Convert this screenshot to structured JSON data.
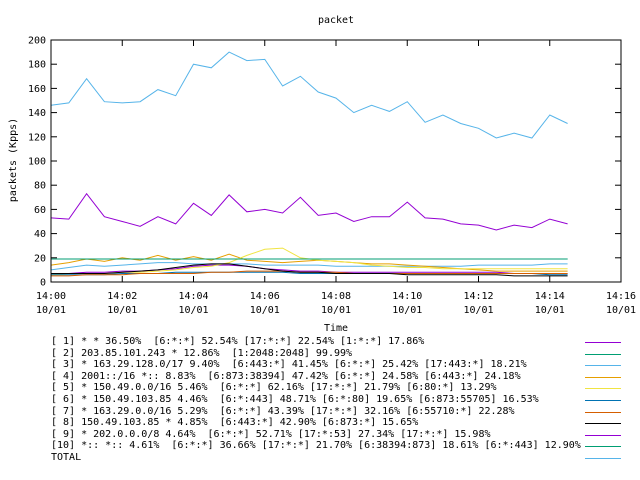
{
  "chart_data": {
    "type": "line",
    "title": "packet",
    "xlabel": "Time",
    "ylabel": "packets (Kpps)",
    "ylim": [
      0,
      200
    ],
    "y_ticks": [
      "0",
      "20",
      "40",
      "60",
      "80",
      "100",
      "120",
      "140",
      "160",
      "180",
      "200"
    ],
    "xlim": [
      "14:00",
      "14:16"
    ],
    "x_ticks": [
      {
        "time": "14:00",
        "date": "10/01"
      },
      {
        "time": "14:02",
        "date": "10/01"
      },
      {
        "time": "14:04",
        "date": "10/01"
      },
      {
        "time": "14:06",
        "date": "10/01"
      },
      {
        "time": "14:08",
        "date": "10/01"
      },
      {
        "time": "14:10",
        "date": "10/01"
      },
      {
        "time": "14:12",
        "date": "10/01"
      },
      {
        "time": "14:14",
        "date": "10/01"
      },
      {
        "time": "14:16",
        "date": "10/01"
      }
    ],
    "grid": false,
    "legend_position": "bottom",
    "x": [
      "14:00:00",
      "14:00:30",
      "14:01:00",
      "14:01:30",
      "14:02:00",
      "14:02:30",
      "14:03:00",
      "14:03:30",
      "14:04:00",
      "14:04:30",
      "14:05:00",
      "14:05:30",
      "14:06:00",
      "14:06:30",
      "14:07:00",
      "14:07:30",
      "14:08:00",
      "14:08:30",
      "14:09:00",
      "14:09:30",
      "14:10:00",
      "14:10:30",
      "14:11:00",
      "14:11:30",
      "14:12:00",
      "14:12:30",
      "14:13:00",
      "14:13:30",
      "14:14:00",
      "14:14:30"
    ],
    "series": [
      {
        "name": "[ 1] * * 36.50%  [6:*:*] 52.54% [17:*:*] 22.54% [1:*:*] 17.86%",
        "color": "#9400d3",
        "values": [
          7,
          7,
          8,
          8,
          9,
          9,
          10,
          11,
          13,
          14,
          14,
          13,
          11,
          10,
          9,
          9,
          8,
          8,
          8,
          8,
          8,
          8,
          8,
          8,
          8,
          8,
          7,
          7,
          7,
          7
        ]
      },
      {
        "name": "[ 2] 203.85.101.243 * 12.86%  [1:2048:2048] 99.99%",
        "color": "#009e73",
        "values": [
          19,
          19,
          19,
          19,
          19,
          19,
          19,
          19,
          19,
          19,
          19,
          19,
          19,
          19,
          19,
          19,
          19,
          19,
          19,
          19,
          19,
          19,
          19,
          19,
          19,
          19,
          19,
          19,
          19,
          19
        ]
      },
      {
        "name": "[ 3] * 163.29.128.0/17 9.40%  [6:443:*] 41.45% [6:*:*] 25.42% [17:443:*] 18.21%",
        "color": "#56b4e9",
        "values": [
          10,
          12,
          14,
          13,
          14,
          15,
          16,
          16,
          15,
          15,
          15,
          15,
          14,
          14,
          14,
          14,
          13,
          13,
          13,
          13,
          13,
          13,
          13,
          13,
          14,
          14,
          14,
          14,
          15,
          15
        ]
      },
      {
        "name": "[ 4] 2001::/16 *:: 8.83%  [6:873:38394] 47.42% [6:*:*] 24.58% [6:443:*] 24.18%",
        "color": "#e69f00",
        "values": [
          14,
          16,
          19,
          17,
          20,
          18,
          22,
          18,
          21,
          18,
          23,
          18,
          17,
          16,
          17,
          18,
          17,
          16,
          15,
          15,
          14,
          13,
          12,
          11,
          10,
          9,
          9,
          9,
          9,
          9
        ]
      },
      {
        "name": "[ 5] * 150.49.0.0/16 5.46%  [6:*:*] 62.16% [17:*:*] 21.79% [6:80:*] 13.29%",
        "color": "#f0e442",
        "values": [
          6,
          7,
          7,
          7,
          8,
          8,
          9,
          10,
          12,
          13,
          16,
          22,
          27,
          28,
          20,
          18,
          17,
          16,
          14,
          13,
          12,
          12,
          11,
          11,
          11,
          11,
          11,
          11,
          11,
          11
        ]
      },
      {
        "name": "[ 6] * 150.49.103.85 4.46%  [6:*:443] 48.71% [6:*:80] 19.65% [6:873:55705] 16.53%",
        "color": "#0072b2",
        "values": [
          6,
          6,
          6,
          6,
          7,
          7,
          7,
          8,
          8,
          8,
          8,
          8,
          8,
          8,
          7,
          7,
          7,
          7,
          7,
          7,
          7,
          7,
          7,
          7,
          7,
          7,
          7,
          7,
          6,
          6
        ]
      },
      {
        "name": "[ 7] * 163.29.0.0/16 5.29%  [6:*:*] 43.39% [17:*:*] 32.16% [6:55710:*] 22.28%",
        "color": "#d55e00",
        "values": [
          5,
          5,
          6,
          6,
          6,
          7,
          7,
          7,
          7,
          8,
          8,
          9,
          9,
          9,
          8,
          8,
          8,
          7,
          7,
          7,
          7,
          7,
          7,
          7,
          7,
          7,
          7,
          7,
          7,
          7
        ]
      },
      {
        "name": "[ 8] 150.49.103.85 * 4.85%  [6:443:*] 42.90% [6:873:*] 15.65%",
        "color": "#000000",
        "values": [
          7,
          7,
          7,
          7,
          8,
          9,
          10,
          12,
          14,
          15,
          15,
          13,
          11,
          9,
          8,
          8,
          7,
          7,
          7,
          7,
          6,
          6,
          6,
          6,
          6,
          6,
          5,
          5,
          5,
          5
        ]
      },
      {
        "name": "[ 9] * 202.0.0.0/8 4.64%  [6:*:*] 52.71% [17:*:53] 27.34% [17:*:*] 15.98%",
        "color": "#9400d3",
        "values": [
          53,
          52,
          73,
          54,
          50,
          46,
          54,
          48,
          65,
          55,
          72,
          58,
          60,
          57,
          70,
          55,
          57,
          50,
          54,
          54,
          66,
          53,
          52,
          48,
          47,
          43,
          47,
          45,
          52,
          48
        ]
      },
      {
        "name": "[10] *:: *:: 4.61%  [6:*:*] 36.66% [17:*:*] 21.70% [6:38394:873] 18.61% [6:*:443] 12.90%",
        "color": "#009e73",
        "values": [
          19,
          19,
          19,
          19,
          19,
          19,
          19,
          19,
          19,
          19,
          19,
          19,
          19,
          19,
          19,
          19,
          19,
          19,
          19,
          19,
          19,
          19,
          19,
          19,
          19,
          19,
          19,
          19,
          19,
          19
        ]
      },
      {
        "name": "TOTAL",
        "color": "#56b4e9",
        "values": [
          146,
          148,
          168,
          149,
          148,
          149,
          159,
          154,
          180,
          177,
          190,
          183,
          184,
          162,
          170,
          157,
          152,
          140,
          146,
          141,
          149,
          132,
          138,
          131,
          127,
          119,
          123,
          119,
          138,
          131
        ]
      }
    ]
  }
}
